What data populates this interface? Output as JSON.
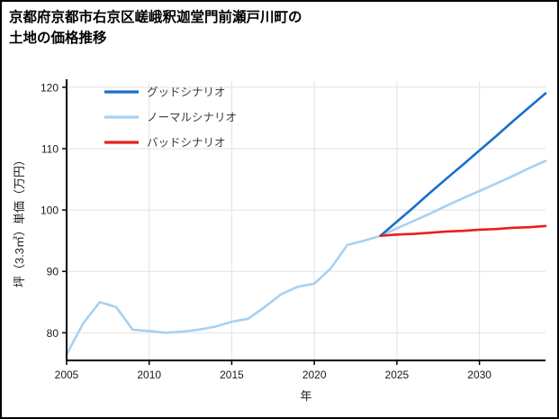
{
  "title": {
    "line1": "京都府京都市右京区嵯峨釈迦堂門前瀬戸川町の",
    "line2": "土地の価格推移"
  },
  "chart_data": {
    "type": "line",
    "title": "京都府京都市右京区嵯峨釈迦堂門前瀬戸川町の土地の価格推移",
    "xlabel": "年",
    "ylabel": "坪（3.3㎡）単価（万円）",
    "xlim": [
      2005,
      2034
    ],
    "ylim": [
      75.5,
      121
    ],
    "xticks": [
      2005,
      2010,
      2015,
      2020,
      2025,
      2030
    ],
    "yticks": [
      80,
      90,
      100,
      110,
      120
    ],
    "grid": true,
    "legend_position": "upper-left",
    "legend": [
      "グッドシナリオ",
      "ノーマルシナリオ",
      "バッドシナリオ"
    ],
    "series": [
      {
        "name": "ノーマルシナリオ",
        "color": "#a7d1f2",
        "x": [
          2005,
          2006,
          2007,
          2008,
          2009,
          2010,
          2011,
          2012,
          2013,
          2014,
          2015,
          2016,
          2017,
          2018,
          2019,
          2020,
          2021,
          2022,
          2023,
          2024,
          2025,
          2026,
          2027,
          2028,
          2029,
          2030,
          2031,
          2032,
          2033,
          2034
        ],
        "y": [
          76.5,
          81.5,
          85.0,
          84.2,
          80.5,
          80.3,
          80.0,
          80.2,
          80.5,
          81.0,
          81.8,
          82.3,
          84.2,
          86.3,
          87.5,
          88.0,
          90.5,
          94.3,
          95.0,
          95.8,
          97.0,
          98.2,
          99.4,
          100.7,
          101.9,
          103.1,
          104.3,
          105.5,
          106.8,
          108.0
        ]
      },
      {
        "name": "グッドシナリオ",
        "color": "#1a6fc9",
        "x": [
          2024,
          2025,
          2026,
          2027,
          2028,
          2029,
          2030,
          2031,
          2032,
          2033,
          2034
        ],
        "y": [
          95.8,
          98.1,
          100.4,
          102.8,
          105.1,
          107.4,
          109.7,
          112.0,
          114.4,
          116.7,
          119.0
        ]
      },
      {
        "name": "バッドシナリオ",
        "color": "#e8201c",
        "x": [
          2024,
          2025,
          2026,
          2027,
          2028,
          2029,
          2030,
          2031,
          2032,
          2033,
          2034
        ],
        "y": [
          95.8,
          96.0,
          96.1,
          96.3,
          96.5,
          96.6,
          96.8,
          96.9,
          97.1,
          97.2,
          97.4
        ]
      }
    ]
  }
}
